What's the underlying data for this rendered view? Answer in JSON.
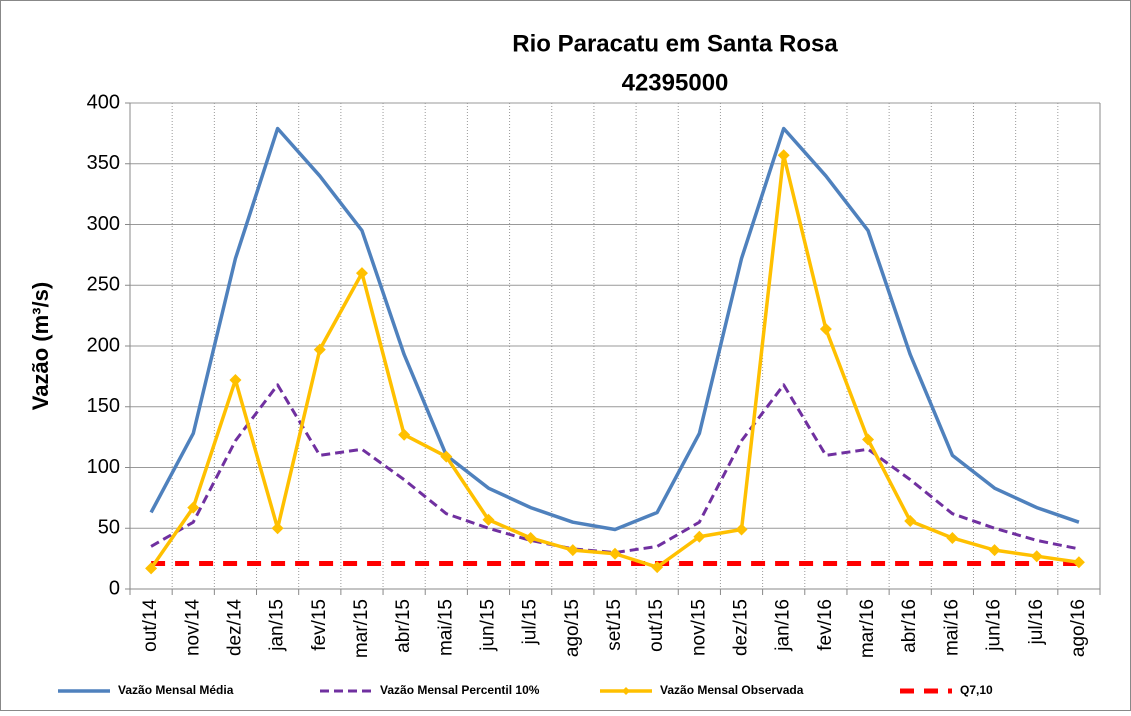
{
  "chart_data": {
    "type": "line",
    "title": "Rio Paracatu em Santa Rosa",
    "subtitle": "42395000",
    "y_label": "Vazão (m³/s)",
    "categories": [
      "out/14",
      "nov/14",
      "dez/14",
      "jan/15",
      "fev/15",
      "mar/15",
      "abr/15",
      "mai/15",
      "jun/15",
      "jul/15",
      "ago/15",
      "set/15",
      "out/15",
      "nov/15",
      "dez/15",
      "jan/16",
      "fev/16",
      "mar/16",
      "abr/16",
      "mai/16",
      "jun/16",
      "jul/16",
      "ago/16"
    ],
    "series": [
      {
        "name": "Vazão Mensal Média",
        "color": "#4f81bd",
        "dash": "solid",
        "marker": false,
        "values": [
          63,
          128,
          272,
          379,
          340,
          295,
          193,
          110,
          83,
          67,
          55,
          49,
          63,
          128,
          272,
          379,
          340,
          295,
          193,
          110,
          83,
          67,
          55
        ]
      },
      {
        "name": "Vazão Mensal Percentil 10%",
        "color": "#7030a0",
        "dash": "dashed",
        "marker": false,
        "values": [
          35,
          55,
          122,
          168,
          110,
          115,
          90,
          62,
          50,
          40,
          33,
          30,
          35,
          55,
          122,
          168,
          110,
          115,
          90,
          62,
          50,
          40,
          33
        ]
      },
      {
        "name": "Vazão Mensal Observada",
        "color": "#ffc000",
        "dash": "solid",
        "marker": true,
        "values": [
          17,
          67,
          172,
          50,
          197,
          260,
          127,
          109,
          57,
          42,
          32,
          29,
          18,
          43,
          49,
          357,
          214,
          123,
          56,
          42,
          32,
          27,
          22
        ]
      },
      {
        "name": "Q7,10",
        "color": "#ff0000",
        "dash": "bold-dashed",
        "marker": false,
        "values": [
          21,
          21,
          21,
          21,
          21,
          21,
          21,
          21,
          21,
          21,
          21,
          21,
          21,
          21,
          21,
          21,
          21,
          21,
          21,
          21,
          21,
          21,
          21
        ]
      }
    ],
    "ylim": [
      0,
      400
    ],
    "yticks": [
      0,
      50,
      100,
      150,
      200,
      250,
      300,
      350,
      400
    ],
    "grid": true,
    "legend": "bottom"
  }
}
